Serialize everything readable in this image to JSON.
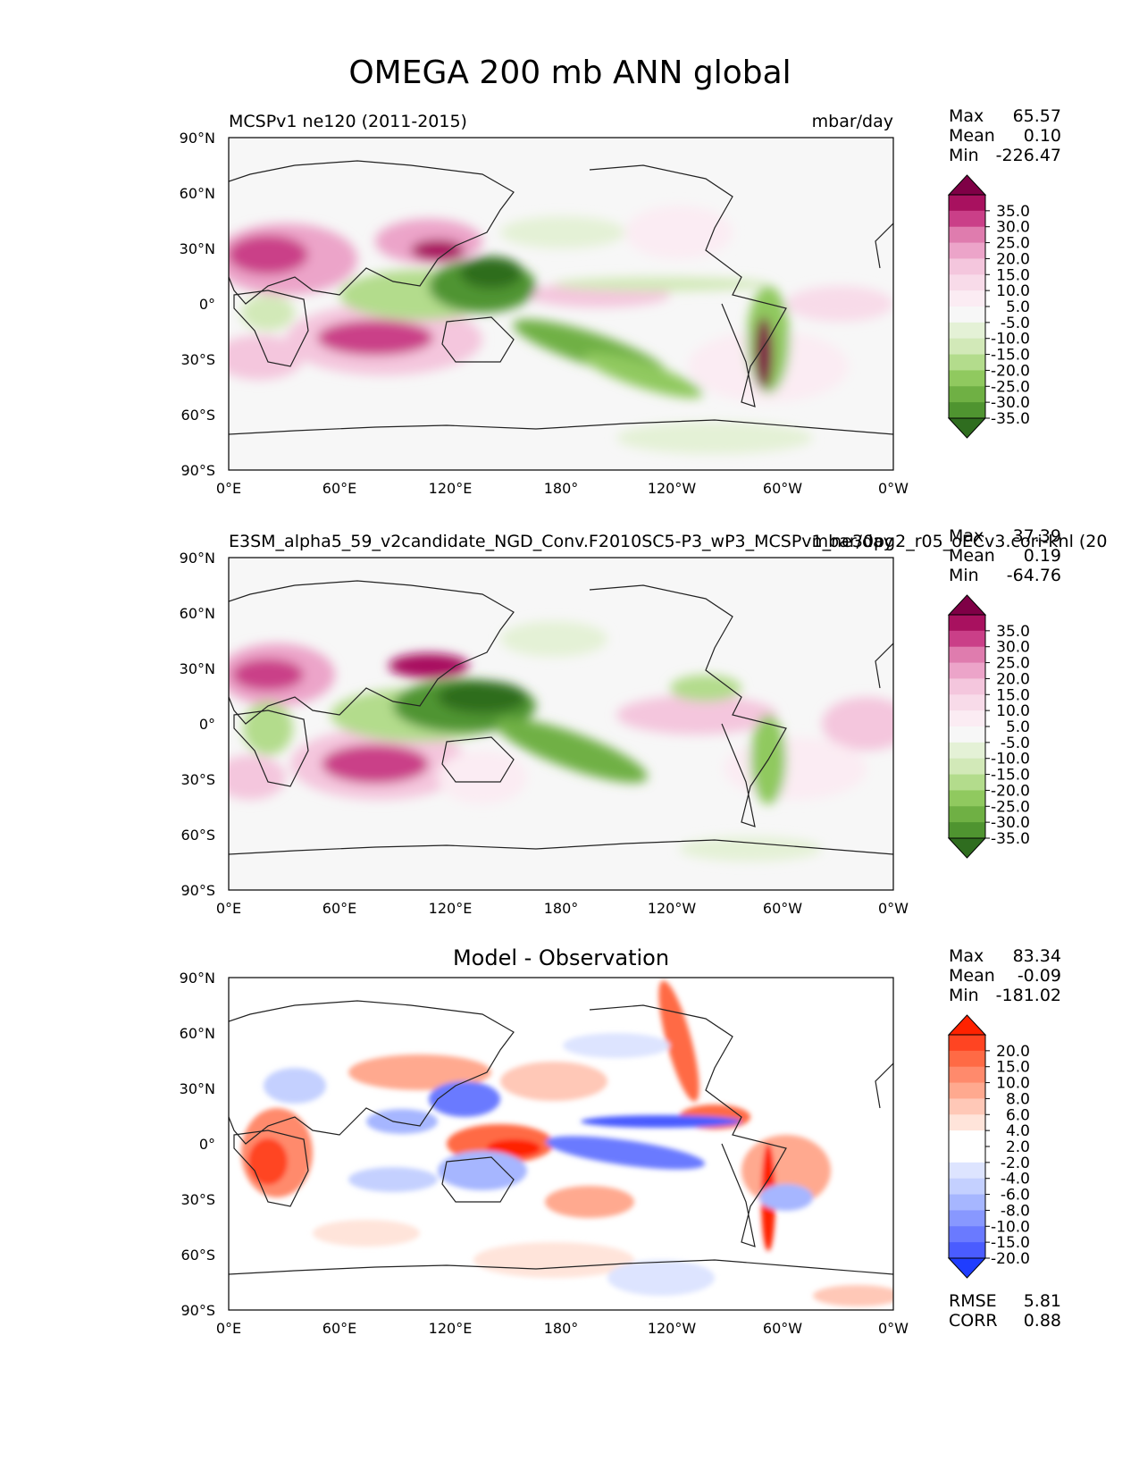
{
  "figure": {
    "title": "OMEGA 200 mb ANN global"
  },
  "axes": {
    "lat_ticks": [
      "90°N",
      "60°N",
      "30°N",
      "0°",
      "30°S",
      "60°S",
      "90°S"
    ],
    "lon_ticks": [
      "0°E",
      "60°E",
      "120°E",
      "180°",
      "120°W",
      "60°W",
      "0°W"
    ]
  },
  "colors": {
    "ref_levels": [
      "#7f0046",
      "#a8115f",
      "#ca3f88",
      "#df7cae",
      "#eca4c9",
      "#f4c6dd",
      "#f8dbe9",
      "#fbecf3",
      "#f7f7f7",
      "#e4f1d6",
      "#d2e9b8",
      "#b3dc8c",
      "#90c95f",
      "#6fb044",
      "#4f9430",
      "#2f6d1f"
    ],
    "diff_levels": [
      "#ff2200",
      "#ff4422",
      "#ff6a45",
      "#ff8a6c",
      "#ffa98f",
      "#ffc8b7",
      "#ffe4da",
      "#ffffff",
      "#ffffff",
      "#dde4ff",
      "#c4d0ff",
      "#a6b6ff",
      "#8898ff",
      "#6a7aff",
      "#4a5cff",
      "#1f3dff"
    ],
    "land_lines": "#222222"
  },
  "chart_data": [
    {
      "type": "heatmap",
      "panel": "test",
      "title_left": "MCSPv1 ne120 (2011-2015)",
      "title_right": "mbar/day",
      "stats": {
        "max_label": "Max",
        "max": "65.57",
        "mean_label": "Mean",
        "mean": "0.10",
        "min_label": "Min",
        "min": "-226.47"
      },
      "colorbar_levels": [
        "35.0",
        "30.0",
        "25.0",
        "20.0",
        "15.0",
        "10.0",
        "5.0",
        "-5.0",
        "-10.0",
        "-15.0",
        "-20.0",
        "-25.0",
        "-30.0",
        "-35.0"
      ],
      "xlim": [
        0,
        360
      ],
      "ylim": [
        -90,
        90
      ],
      "features_description": [
        "strong ascent (green) over Maritime Continent and SPCZ",
        "descent (pink) over subtropical Indian Ocean, N Africa, Tibet edge"
      ]
    },
    {
      "type": "heatmap",
      "panel": "reference",
      "title_left": "E3SM_alpha5_59_v2candidate_NGD_Conv.F2010SC5-P3_wP3_MCSPv1_ne30pg2_r05_oECv3.cori-knl (20",
      "title_right": "mbar/day",
      "stats": {
        "max_label": "Max",
        "max": "37.39",
        "mean_label": "Mean",
        "mean": "0.19",
        "min_label": "Min",
        "min": "-64.76"
      },
      "colorbar_levels": [
        "35.0",
        "30.0",
        "25.0",
        "20.0",
        "15.0",
        "10.0",
        "5.0",
        "-5.0",
        "-10.0",
        "-15.0",
        "-20.0",
        "-25.0",
        "-30.0",
        "-35.0"
      ],
      "xlim": [
        0,
        360
      ],
      "ylim": [
        -90,
        90
      ]
    },
    {
      "type": "heatmap",
      "panel": "difference",
      "title_center": "Model - Observation",
      "stats": {
        "max_label": "Max",
        "max": "83.34",
        "mean_label": "Mean",
        "mean": "-0.09",
        "min_label": "Min",
        "min": "-181.02"
      },
      "colorbar_levels": [
        "20.0",
        "15.0",
        "10.0",
        "8.0",
        "6.0",
        "4.0",
        "2.0",
        "-2.0",
        "-4.0",
        "-6.0",
        "-8.0",
        "-10.0",
        "-15.0",
        "-20.0"
      ],
      "metrics": {
        "rmse_label": "RMSE",
        "rmse": "5.81",
        "corr_label": "CORR",
        "corr": "0.88"
      },
      "xlim": [
        0,
        360
      ],
      "ylim": [
        -90,
        90
      ]
    }
  ]
}
